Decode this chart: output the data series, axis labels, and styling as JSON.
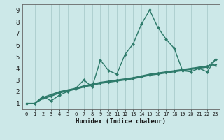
{
  "xlabel": "Humidex (Indice chaleur)",
  "xlim": [
    -0.5,
    23.5
  ],
  "ylim": [
    0.5,
    9.5
  ],
  "yticks": [
    1,
    2,
    3,
    4,
    5,
    6,
    7,
    8,
    9
  ],
  "xticks": [
    0,
    1,
    2,
    3,
    4,
    5,
    6,
    7,
    8,
    9,
    10,
    11,
    12,
    13,
    14,
    15,
    16,
    17,
    18,
    19,
    20,
    21,
    22,
    23
  ],
  "background_color": "#cce8e8",
  "grid_color": "#aacccc",
  "lines": [
    {
      "x": [
        0,
        1,
        2,
        3,
        4,
        5,
        6,
        7,
        8,
        9,
        10,
        11,
        12,
        13,
        14,
        15,
        16,
        17,
        18,
        19,
        20,
        21,
        22,
        23
      ],
      "y": [
        1.0,
        1.0,
        1.5,
        1.75,
        2.0,
        2.15,
        2.3,
        2.5,
        2.65,
        2.8,
        2.9,
        3.0,
        3.1,
        3.2,
        3.35,
        3.5,
        3.6,
        3.7,
        3.8,
        3.9,
        4.0,
        4.1,
        4.2,
        4.35
      ],
      "color": "#2d7a6a",
      "lw": 1.0,
      "marker": "D",
      "ms": 1.8
    },
    {
      "x": [
        0,
        1,
        2,
        3,
        4,
        5,
        6,
        7,
        8,
        9,
        10,
        11,
        12,
        13,
        14,
        15,
        16,
        17,
        18,
        19,
        20,
        21,
        22,
        23
      ],
      "y": [
        1.0,
        1.0,
        1.45,
        1.65,
        1.95,
        2.1,
        2.25,
        2.45,
        2.6,
        2.75,
        2.85,
        2.95,
        3.05,
        3.15,
        3.3,
        3.45,
        3.55,
        3.65,
        3.75,
        3.85,
        3.95,
        4.05,
        4.15,
        4.25
      ],
      "color": "#2d7a6a",
      "lw": 1.0,
      "marker": "D",
      "ms": 1.8
    },
    {
      "x": [
        0,
        1,
        2,
        3,
        4,
        5,
        6,
        7,
        8,
        9,
        10,
        11,
        12,
        13,
        14,
        15,
        16,
        17,
        18,
        19,
        20,
        21,
        22,
        23
      ],
      "y": [
        1.0,
        1.0,
        1.4,
        1.6,
        1.88,
        2.05,
        2.2,
        2.4,
        2.55,
        2.7,
        2.8,
        2.9,
        3.0,
        3.1,
        3.25,
        3.4,
        3.5,
        3.6,
        3.7,
        3.8,
        3.9,
        4.0,
        4.1,
        4.75
      ],
      "color": "#2d7a6a",
      "lw": 1.0,
      "marker": "D",
      "ms": 1.8
    },
    {
      "x": [
        0,
        1,
        2,
        3,
        4,
        5,
        6,
        7,
        8,
        9,
        10,
        11,
        12,
        13,
        14,
        15,
        16,
        17,
        18,
        19,
        20,
        21,
        22,
        23
      ],
      "y": [
        1.0,
        1.0,
        1.6,
        1.2,
        1.7,
        2.0,
        2.3,
        3.0,
        2.4,
        4.7,
        3.8,
        3.5,
        5.2,
        6.1,
        7.8,
        9.0,
        7.5,
        6.5,
        5.7,
        3.8,
        3.7,
        4.0,
        3.7,
        4.75
      ],
      "color": "#2d7a6a",
      "lw": 1.0,
      "marker": "D",
      "ms": 2.5
    }
  ]
}
